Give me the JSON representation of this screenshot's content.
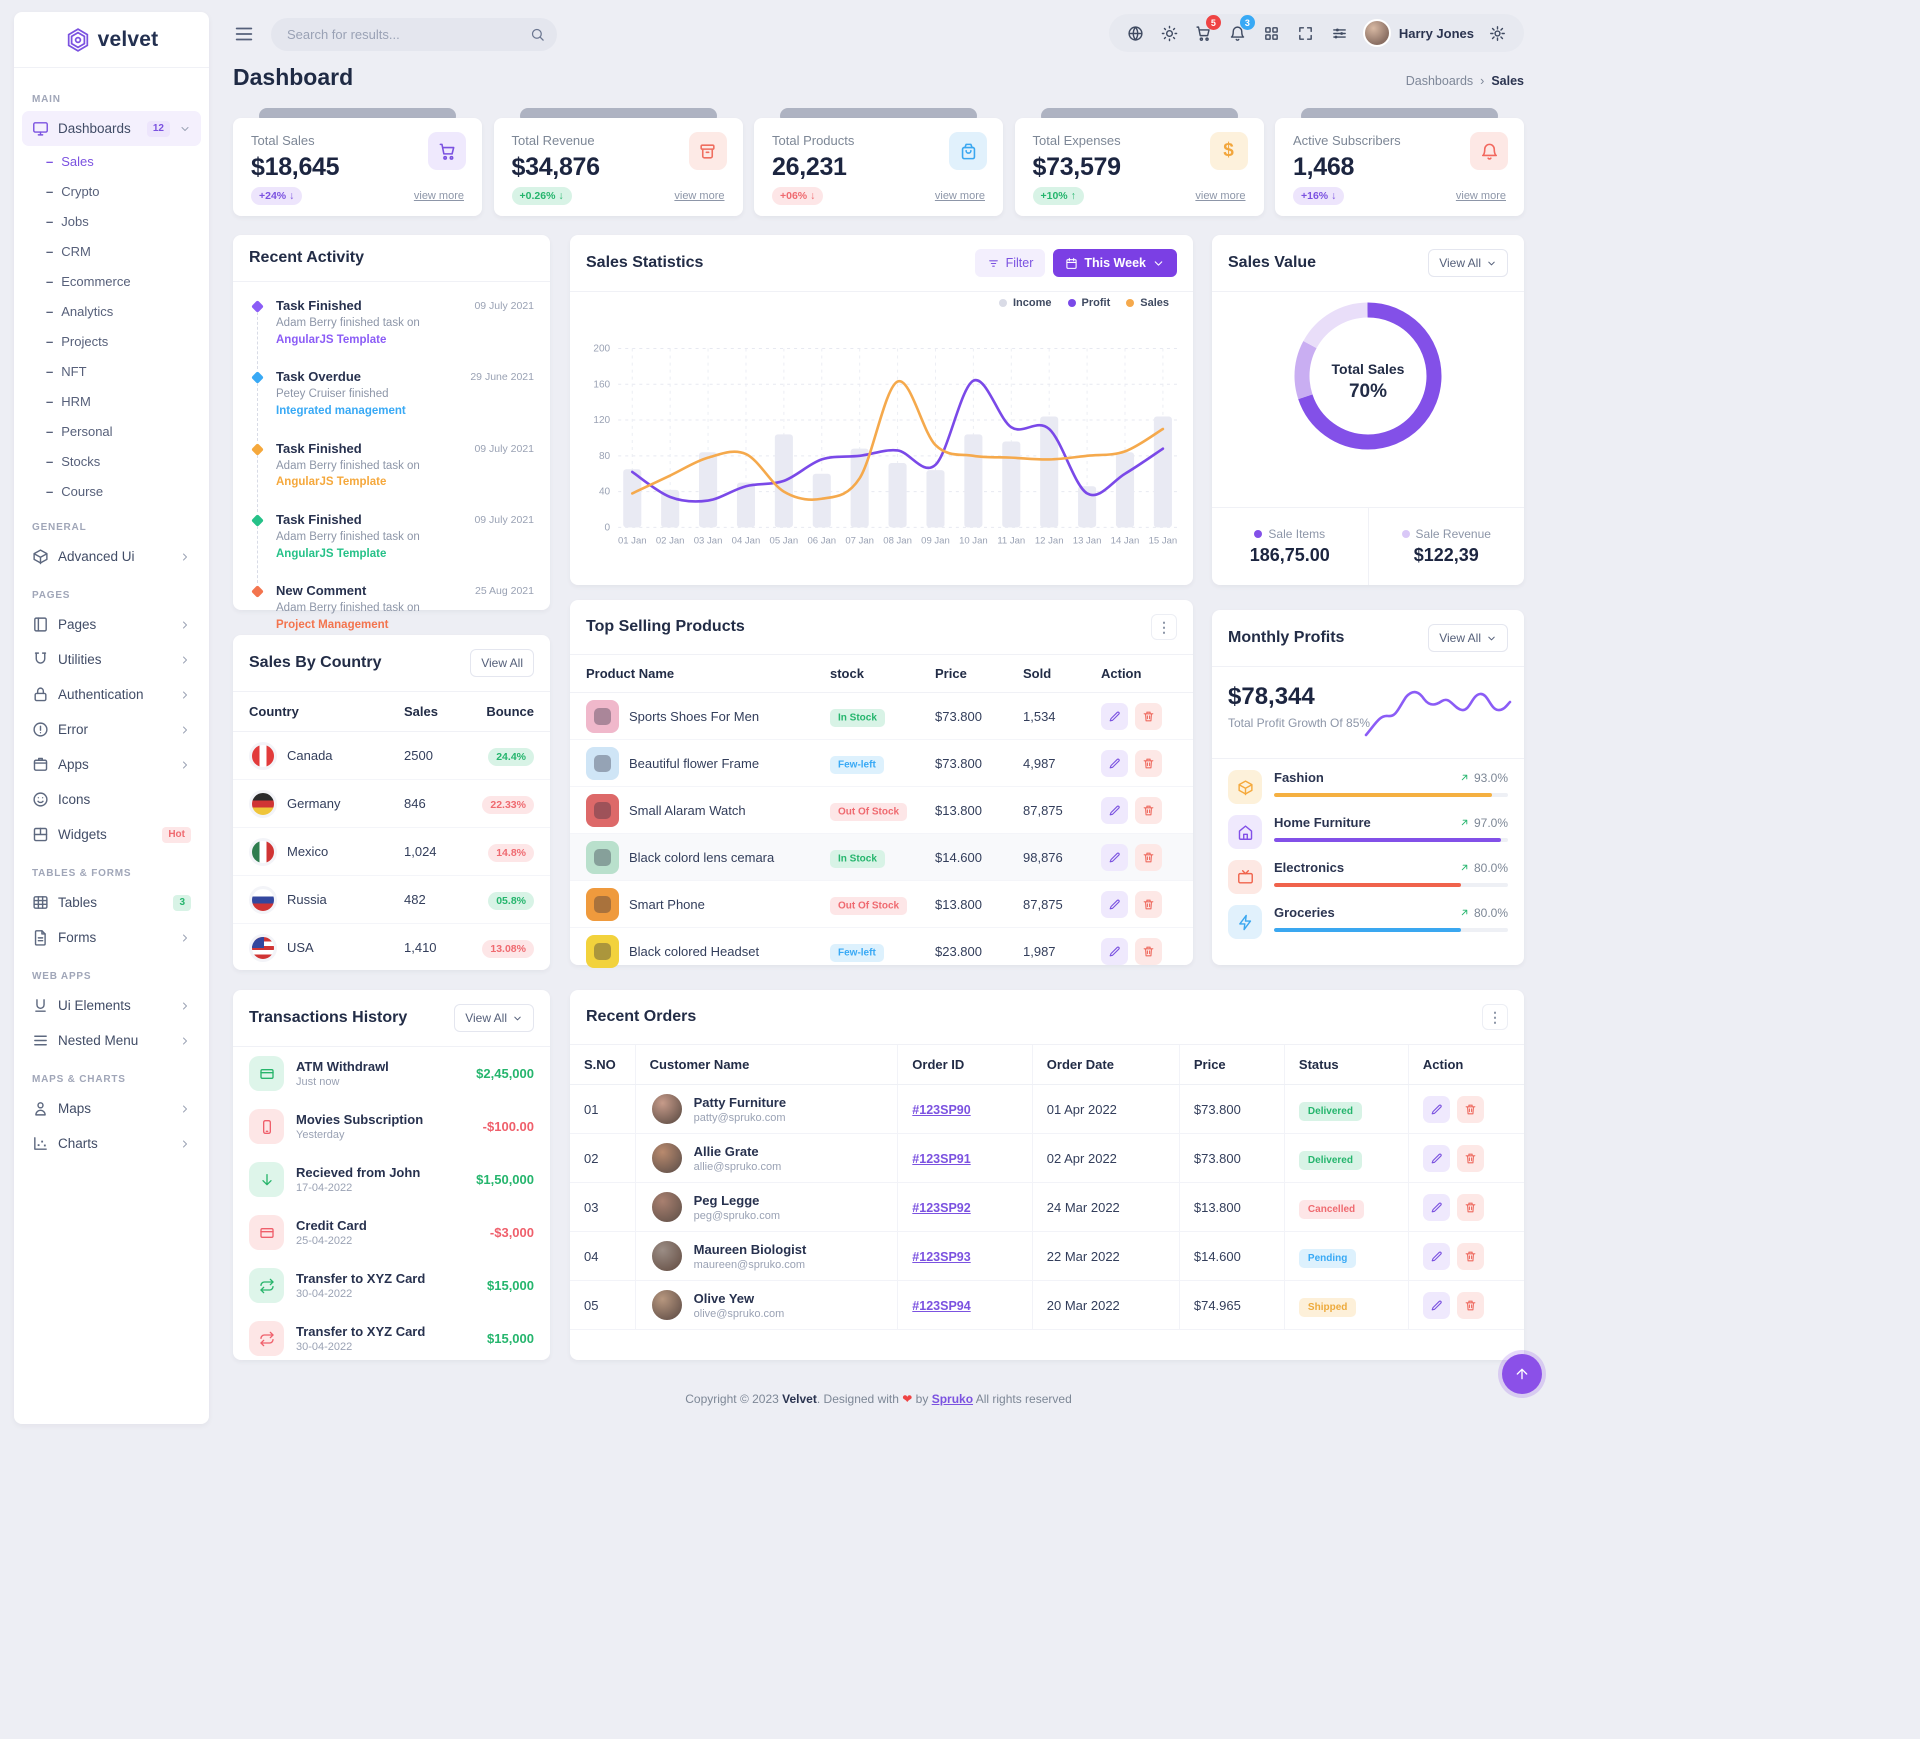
{
  "brand": "velvet",
  "page": {
    "title": "Dashboard",
    "breadcrumb": {
      "parent": "Dashboards",
      "current": "Sales"
    }
  },
  "header": {
    "search_placeholder": "Search for results...",
    "icons": [
      {
        "name": "globe-icon",
        "glyph": "globe"
      },
      {
        "name": "theme-light-icon",
        "glyph": "sun"
      },
      {
        "name": "cart-icon",
        "glyph": "cart",
        "badge": "5",
        "badge_color": "#ef4444"
      },
      {
        "name": "notifications-icon",
        "glyph": "bell",
        "badge": "3",
        "badge_color": "#38a9f5"
      },
      {
        "name": "apps-grid-icon",
        "glyph": "grid"
      },
      {
        "name": "fullscreen-icon",
        "glyph": "expand"
      },
      {
        "name": "shortcuts-sliders-icon",
        "glyph": "sliders"
      }
    ],
    "user": {
      "name": "Harry Jones"
    }
  },
  "sidebar": {
    "sections": [
      {
        "label": "MAIN",
        "items": [
          {
            "label": "Dashboards",
            "glyph": "monitor",
            "badge": "12",
            "badge_type": "b-purple",
            "chevron": "down",
            "active": true,
            "children": [
              {
                "label": "Sales",
                "active": true
              },
              {
                "label": "Crypto"
              },
              {
                "label": "Jobs"
              },
              {
                "label": "CRM"
              },
              {
                "label": "Ecommerce"
              },
              {
                "label": "Analytics"
              },
              {
                "label": "Projects"
              },
              {
                "label": "NFT"
              },
              {
                "label": "HRM"
              },
              {
                "label": "Personal"
              },
              {
                "label": "Stocks"
              },
              {
                "label": "Course"
              }
            ]
          }
        ]
      },
      {
        "label": "GENERAL",
        "items": [
          {
            "label": "Advanced Ui",
            "glyph": "cube",
            "chevron": "right"
          }
        ]
      },
      {
        "label": "PAGES",
        "items": [
          {
            "label": "Pages",
            "glyph": "book",
            "chevron": "right"
          },
          {
            "label": "Utilities",
            "glyph": "magnet",
            "chevron": "right"
          },
          {
            "label": "Authentication",
            "glyph": "lock",
            "chevron": "right"
          },
          {
            "label": "Error",
            "glyph": "alert",
            "chevron": "right"
          },
          {
            "label": "Apps",
            "glyph": "box",
            "chevron": "right"
          },
          {
            "label": "Icons",
            "glyph": "smiley"
          },
          {
            "label": "Widgets",
            "glyph": "widgets",
            "badge": "Hot",
            "badge_type": "b-red"
          }
        ]
      },
      {
        "label": "TABLES & FORMS",
        "items": [
          {
            "label": "Tables",
            "glyph": "tablegrid",
            "badge": "3",
            "badge_type": "b-green"
          },
          {
            "label": "Forms",
            "glyph": "file",
            "chevron": "right"
          }
        ]
      },
      {
        "label": "WEB APPS",
        "items": [
          {
            "label": "Ui Elements",
            "glyph": "uielem",
            "chevron": "right"
          },
          {
            "label": "Nested Menu",
            "glyph": "nested",
            "chevron": "right"
          }
        ]
      },
      {
        "label": "MAPS & CHARTS",
        "items": [
          {
            "label": "Maps",
            "glyph": "mappin",
            "chevron": "right"
          },
          {
            "label": "Charts",
            "glyph": "chartbars",
            "chevron": "right"
          }
        ]
      }
    ]
  },
  "stats_cards": [
    {
      "label": "Total Sales",
      "value": "$18,645",
      "glyph": "cart",
      "icon_color": "#7b52e0",
      "icon_bg": "#efe9fd",
      "badge": "+24% ↓",
      "badge_type": "b-purple",
      "view_more": "view more"
    },
    {
      "label": "Total Revenue",
      "value": "$34,876",
      "glyph": "archive",
      "icon_color": "#ef6e5f",
      "icon_bg": "#fdeae6",
      "badge": "+0.26% ↓",
      "badge_type": "b-green",
      "view_more": "view more"
    },
    {
      "label": "Total Products",
      "value": "26,231",
      "glyph": "bag",
      "icon_color": "#3aa7f0",
      "icon_bg": "#e1f1fc",
      "badge": "+06% ↓",
      "badge_type": "b-red",
      "view_more": "view more"
    },
    {
      "label": "Total Expenses",
      "value": "$73,579",
      "glyph": "dollar",
      "icon_color": "#f2a63c",
      "icon_bg": "#fdf1dc",
      "badge": "+10% ↑",
      "badge_type": "b-green",
      "view_more": "view more"
    },
    {
      "label": "Active Subscribers",
      "value": "1,468",
      "glyph": "bell",
      "icon_color": "#f2685e",
      "icon_bg": "#fde8e5",
      "badge": "+16% ↓",
      "badge_type": "b-purple",
      "view_more": "view more"
    }
  ],
  "recent_activity": {
    "title": "Recent Activity",
    "items": [
      {
        "color": "#8b5cf6",
        "title": "Task Finished",
        "text": "Adam Berry finished task on ",
        "keyword": "AngularJS Template",
        "date": "09 July 2021"
      },
      {
        "color": "#38a9f5",
        "title": "Task Overdue",
        "text": "Petey Cruiser finished ",
        "keyword": "Integrated management",
        "date": "29 June 2021"
      },
      {
        "color": "#f5a83c",
        "title": "Task Finished",
        "text": "Adam Berry finished task on ",
        "keyword": "AngularJS Template",
        "date": "09 July 2021"
      },
      {
        "color": "#25c188",
        "title": "Task Finished",
        "text": "Adam Berry finished task on ",
        "keyword": "AngularJS Template",
        "date": "09 July 2021"
      },
      {
        "color": "#f3744e",
        "title": "New Comment",
        "text": "Adam Berry finished task on ",
        "keyword": "Project Management",
        "date": "25 Aug 2021"
      }
    ]
  },
  "sales_statistics": {
    "title": "Sales Statistics",
    "filter_label": "Filter",
    "period_label": "This Week",
    "chart_data": {
      "type": "bar+line",
      "categories": [
        "01 Jan",
        "02 Jan",
        "03 Jan",
        "04 Jan",
        "05 Jan",
        "06 Jan",
        "07 Jan",
        "08 Jan",
        "09 Jan",
        "10 Jan",
        "11 Jan",
        "12 Jan",
        "13 Jan",
        "14 Jan",
        "15 Jan"
      ],
      "yticks": [
        0,
        40,
        80,
        120,
        160,
        200
      ],
      "ylim": [
        0,
        200
      ],
      "series": [
        {
          "name": "Income",
          "type": "bar",
          "color": "#e9eaf3",
          "values": [
            65,
            42,
            84,
            50,
            104,
            60,
            88,
            72,
            64,
            104,
            96,
            124,
            46,
            84,
            124
          ]
        },
        {
          "name": "Profit",
          "type": "line",
          "color": "#7a49e8",
          "values": [
            62,
            34,
            30,
            46,
            52,
            76,
            80,
            86,
            70,
            164,
            112,
            110,
            38,
            60,
            88
          ]
        },
        {
          "name": "Sales",
          "type": "line",
          "color": "#f5a94c",
          "values": [
            38,
            58,
            78,
            82,
            40,
            32,
            55,
            163,
            92,
            80,
            78,
            76,
            80,
            85,
            110
          ]
        }
      ],
      "legend_position": "top-right",
      "grid": true
    }
  },
  "sales_value": {
    "title": "Sales Value",
    "view_all": "View All",
    "donut": {
      "center_label": "Total Sales",
      "center_value": "70%",
      "segments": [
        70,
        13,
        17
      ],
      "colors": [
        "#8350e8",
        "#c9aef2",
        "#e9def9"
      ]
    },
    "legend": [
      {
        "label": "Sale Items",
        "value": "186,75.00",
        "dot": "#8350e8"
      },
      {
        "label": "Sale Revenue",
        "value": "$122,39",
        "dot": "#d9c8f7"
      }
    ]
  },
  "sales_by_country": {
    "title": "Sales By Country",
    "view_all": "View All",
    "headers": [
      "Country",
      "Sales",
      "Bounce"
    ],
    "rows": [
      {
        "flag": "ca",
        "country": "Canada",
        "sales": "2500",
        "bounce": "24.4%",
        "type": "b-green"
      },
      {
        "flag": "de",
        "country": "Germany",
        "sales": "846",
        "bounce": "22.33%",
        "type": "b-red"
      },
      {
        "flag": "mx",
        "country": "Mexico",
        "sales": "1,024",
        "bounce": "14.8%",
        "type": "b-red"
      },
      {
        "flag": "ru",
        "country": "Russia",
        "sales": "482",
        "bounce": "05.8%",
        "type": "b-green"
      },
      {
        "flag": "us",
        "country": "USA",
        "sales": "1,410",
        "bounce": "13.08%",
        "type": "b-red"
      }
    ]
  },
  "top_selling": {
    "title": "Top Selling Products",
    "headers": [
      "Product Name",
      "stock",
      "Price",
      "Sold",
      "Action"
    ],
    "rows": [
      {
        "name": "Sports Shoes For Men",
        "thumb": "#f0b8cb",
        "stock": "In Stock",
        "stock_type": "b-green",
        "price": "$73.800",
        "sold": "1,534",
        "shade": false
      },
      {
        "name": "Beautiful flower Frame",
        "thumb": "#cfe5f6",
        "stock": "Few-left",
        "stock_type": "b-blue",
        "price": "$73.800",
        "sold": "4,987",
        "shade": false
      },
      {
        "name": "Small Alaram Watch",
        "thumb": "#dd6969",
        "stock": "Out Of Stock",
        "stock_type": "b-red",
        "price": "$13.800",
        "sold": "87,875",
        "shade": false
      },
      {
        "name": "Black colord lens cemara",
        "thumb": "#b9e0cc",
        "stock": "In Stock",
        "stock_type": "b-green",
        "price": "$14.600",
        "sold": "98,876",
        "shade": true
      },
      {
        "name": "Smart Phone",
        "thumb": "#ef9a3d",
        "stock": "Out Of Stock",
        "stock_type": "b-red",
        "price": "$13.800",
        "sold": "87,875",
        "shade": false
      },
      {
        "name": "Black colored Headset",
        "thumb": "#f2d23c",
        "stock": "Few-left",
        "stock_type": "b-blue",
        "price": "$23.800",
        "sold": "1,987",
        "shade": false
      }
    ]
  },
  "monthly_profits": {
    "title": "Monthly Profits",
    "view_all": "View All",
    "amount": "$78,344",
    "subtitle": "Total Profit Growth Of 85%",
    "categories": [
      {
        "name": "Fashion",
        "pct": "93.0%",
        "value": 93,
        "bar": "#f5b041",
        "glyph": "cube",
        "icon_color": "#f5a93c",
        "icon_bg": "#fdf1da"
      },
      {
        "name": "Home Furniture",
        "pct": "97.0%",
        "value": 97,
        "bar": "#8250e8",
        "glyph": "home",
        "icon_color": "#8250e8",
        "icon_bg": "#efe9fd"
      },
      {
        "name": "Electronics",
        "pct": "80.0%",
        "value": 80,
        "bar": "#f0634c",
        "glyph": "tv",
        "icon_color": "#f0634c",
        "icon_bg": "#fde8e3"
      },
      {
        "name": "Groceries",
        "pct": "80.0%",
        "value": 80,
        "bar": "#3aa7f0",
        "glyph": "zap",
        "icon_color": "#3aa7f0",
        "icon_bg": "#e1f1fc"
      }
    ]
  },
  "transactions": {
    "title": "Transactions History",
    "view_all": "View All",
    "rows": [
      {
        "glyph": "creditcard",
        "tone": "i-green",
        "name": "ATM Withdrawl",
        "sub": "Just now",
        "amount": "$2,45,000",
        "amount_type": "t-green"
      },
      {
        "glyph": "mobile",
        "tone": "i-red",
        "name": "Movies Subscription",
        "sub": "Yesterday",
        "amount": "-$100.00",
        "amount_type": "t-red"
      },
      {
        "glyph": "arrowdown",
        "tone": "i-green",
        "name": "Recieved from John",
        "sub": "17-04-2022",
        "amount": "$1,50,000",
        "amount_type": "t-green"
      },
      {
        "glyph": "creditcard",
        "tone": "i-red",
        "name": "Credit Card",
        "sub": "25-04-2022",
        "amount": "-$3,000",
        "amount_type": "t-red"
      },
      {
        "glyph": "repeat",
        "tone": "i-green",
        "name": "Transfer to XYZ Card",
        "sub": "30-04-2022",
        "amount": "$15,000",
        "amount_type": "t-green"
      },
      {
        "glyph": "repeat",
        "tone": "i-red",
        "name": "Transfer to XYZ Card",
        "sub": "30-04-2022",
        "amount": "$15,000",
        "amount_type": "t-green"
      }
    ]
  },
  "recent_orders": {
    "title": "Recent Orders",
    "headers": [
      "S.NO",
      "Customer Name",
      "Order ID",
      "Order Date",
      "Price",
      "Status",
      "Action"
    ],
    "rows": [
      {
        "sno": "01",
        "name": "Patty Furniture",
        "email": "patty@spruko.com",
        "order_id": "#123SP90",
        "date": "01 Apr 2022",
        "price": "$73.800",
        "status": "Delivered",
        "status_type": "b-green"
      },
      {
        "sno": "02",
        "name": "Allie Grate",
        "email": "allie@spruko.com",
        "order_id": "#123SP91",
        "date": "02 Apr 2022",
        "price": "$73.800",
        "status": "Delivered",
        "status_type": "b-green"
      },
      {
        "sno": "03",
        "name": "Peg Legge",
        "email": "peg@spruko.com",
        "order_id": "#123SP92",
        "date": "24 Mar 2022",
        "price": "$13.800",
        "status": "Cancelled",
        "status_type": "b-red"
      },
      {
        "sno": "04",
        "name": "Maureen Biologist",
        "email": "maureen@spruko.com",
        "order_id": "#123SP93",
        "date": "22 Mar 2022",
        "price": "$14.600",
        "status": "Pending",
        "status_type": "b-blue"
      },
      {
        "sno": "05",
        "name": "Olive Yew",
        "email": "olive@spruko.com",
        "order_id": "#123SP94",
        "date": "20 Mar 2022",
        "price": "$74.965",
        "status": "Shipped",
        "status_type": "b-orange"
      }
    ]
  },
  "footer": {
    "prefix": "Copyright © 2023",
    "brand": "Velvet",
    "middle": ". Designed with",
    "heart": "❤",
    "by": "by",
    "agency": "Spruko",
    "suffix": "All rights reserved"
  }
}
